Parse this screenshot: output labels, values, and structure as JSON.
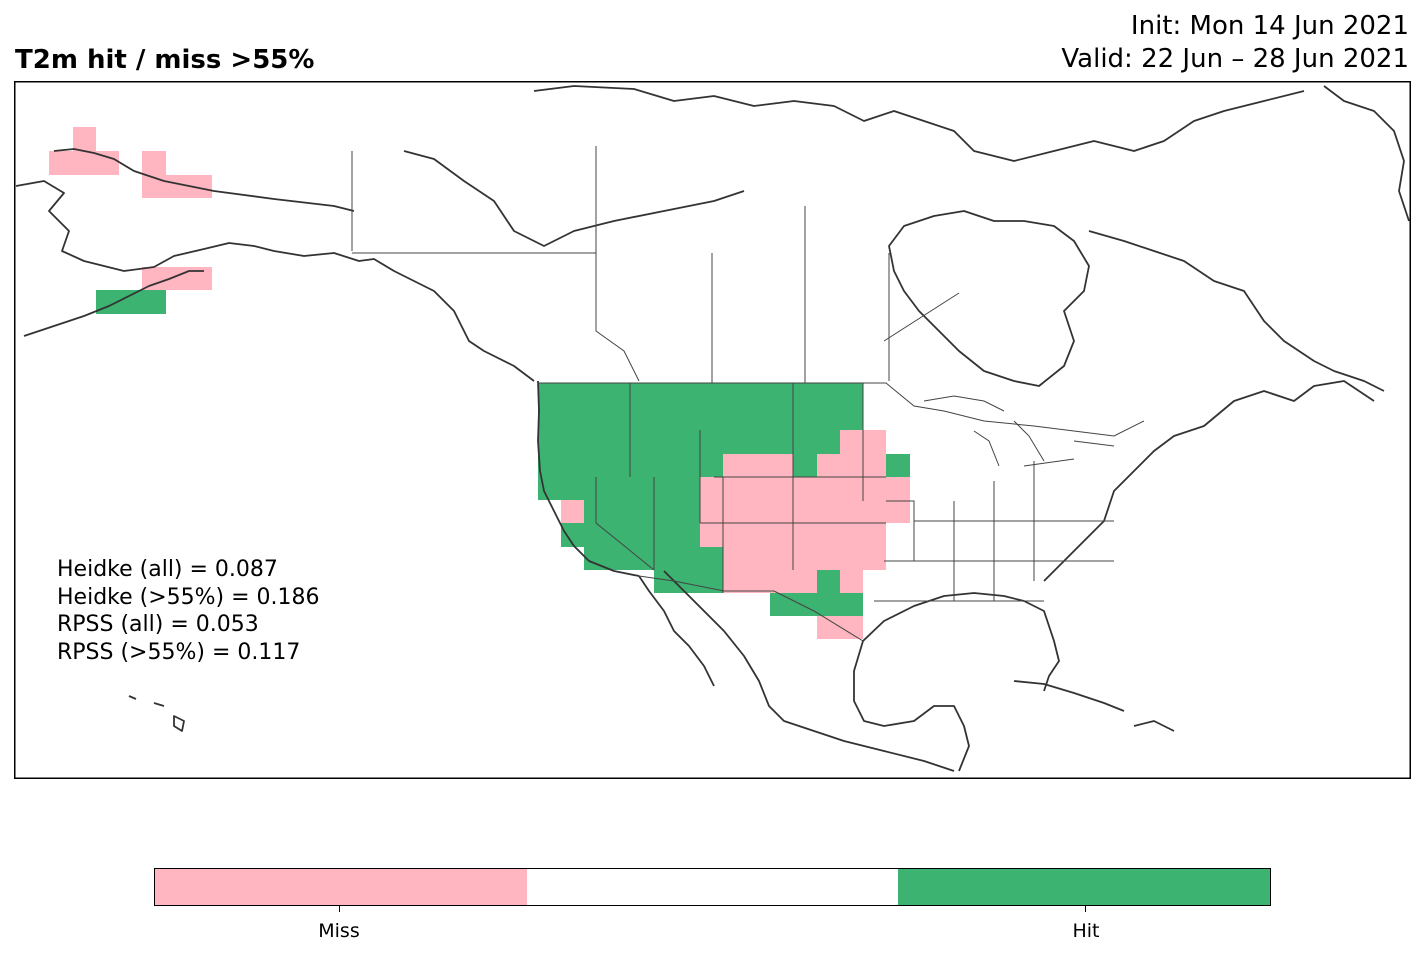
{
  "header": {
    "title": "T2m hit / miss  >55%",
    "init": "Init: Mon 14 Jun 2021",
    "valid": "Valid: 22 Jun – 28 Jun 2021"
  },
  "colors": {
    "hit": "#3cb371",
    "miss": "#ffb6c1",
    "neutral": "#ffffff",
    "coast": "#333333"
  },
  "stats": [
    "Heidke (all) = 0.087",
    "Heidke (>55%) = 0.186",
    "RPSS (all) = 0.053",
    "RPSS (>55%) = 0.117"
  ],
  "colorbar": {
    "labels": [
      {
        "text": "Miss",
        "category": "miss"
      },
      {
        "text": "",
        "category": "neutral"
      },
      {
        "text": "Hit",
        "category": "hit"
      }
    ]
  }
}
